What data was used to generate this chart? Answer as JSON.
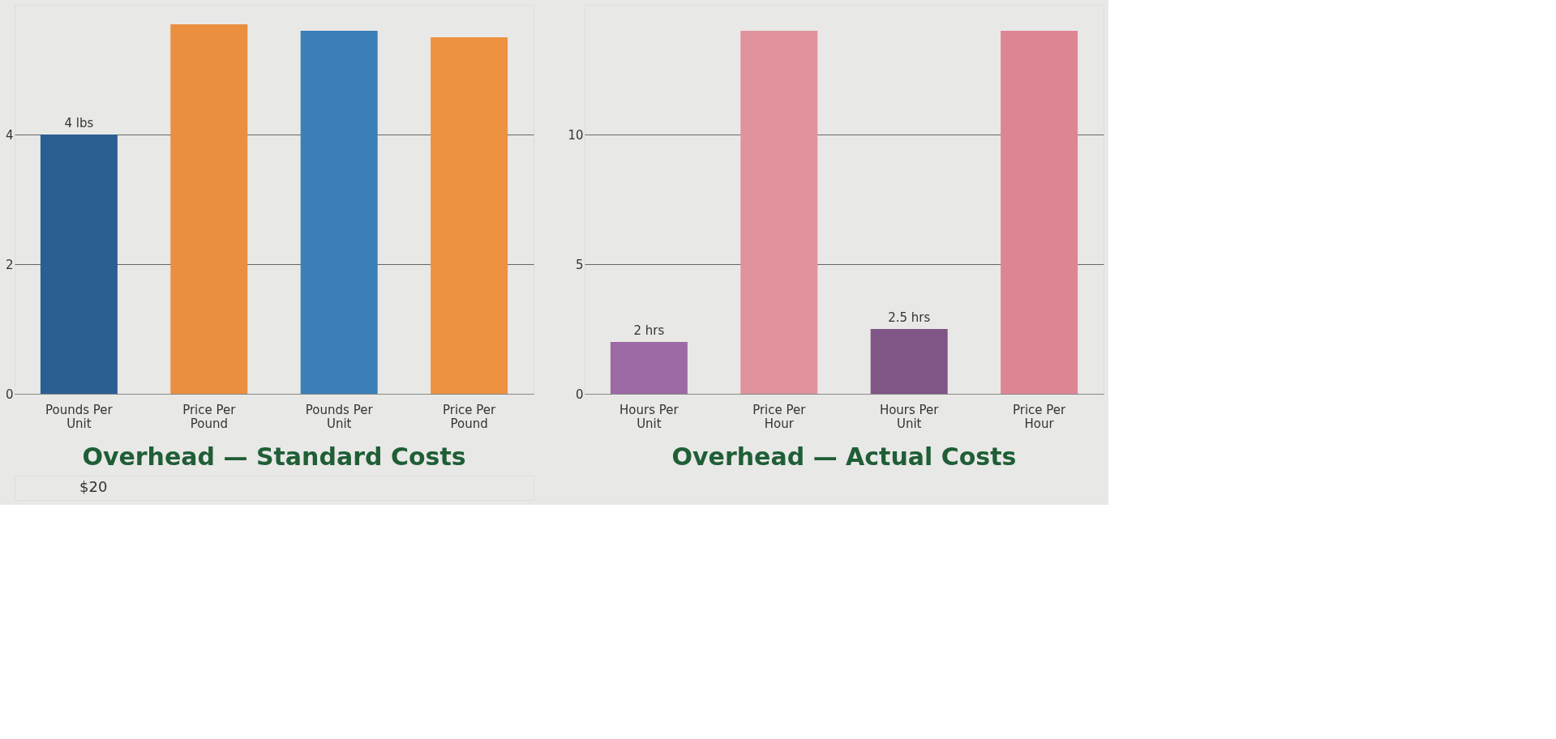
{
  "chart_data": [
    {
      "type": "bar",
      "title": "Overhead — Standard Costs",
      "categories": [
        "Pounds Per Unit",
        "Price Per Pound",
        "Pounds Per Unit",
        "Price Per Pound"
      ],
      "values": [
        4,
        5.7,
        5.6,
        5.5
      ],
      "colors": [
        "#2b5e93",
        "#e98f3f",
        "#3a7fb7",
        "#ec9241"
      ],
      "value_labels": [
        "4 lbs",
        null,
        null,
        null
      ],
      "ylim": [
        0,
        6
      ],
      "yticks": [
        0,
        2,
        4
      ],
      "grid": "y",
      "annotations": [
        "$20"
      ]
    },
    {
      "type": "bar",
      "title": "Overhead — Actual Costs",
      "categories": [
        "Hours Per Unit",
        "Price Per Hour",
        "Hours Per Unit",
        "Price Per Hour"
      ],
      "values": [
        2,
        14,
        2.5,
        14
      ],
      "colors": [
        "#9c6aa5",
        "#e0939c",
        "#7f5686",
        "#de8593"
      ],
      "value_labels": [
        "2 hrs",
        null,
        "2.5 hrs",
        null
      ],
      "ylim": [
        0,
        15
      ],
      "yticks": [
        0,
        5,
        10
      ],
      "grid": "y"
    }
  ]
}
